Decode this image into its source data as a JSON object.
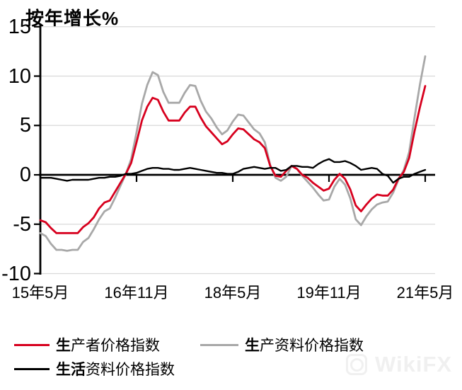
{
  "title": "按年增长%",
  "colors": {
    "ppi_red": "#d7001e",
    "producer_goods_gray": "#a8a8a8",
    "consumer_goods_black": "#000000",
    "grid": "#d9d9d9",
    "axis": "#000000",
    "watermark": "#f0f0f0"
  },
  "legend": [
    {
      "bold": "生",
      "rest": "产者价格指数",
      "color": "#d7001e"
    },
    {
      "bold": "生",
      "rest": "产资料价格指数",
      "color": "#a8a8a8"
    },
    {
      "bold": "生活",
      "rest": "资料价格指数",
      "color": "#000000"
    }
  ],
  "watermark": {
    "text": "WikiFX"
  },
  "chart_data": {
    "type": "line",
    "title": "按年增长%",
    "ylabel": "按年增长%",
    "xlabel": "",
    "ylim": [
      -10,
      15
    ],
    "grid": "horizontal-light",
    "legend_position": "bottom",
    "x_unit": "month",
    "x_start": "2015-05",
    "x_end": "2021-05",
    "yticks": [
      15,
      10,
      5,
      0,
      -5,
      -10
    ],
    "ytick_labels": [
      "15",
      "10",
      "5",
      "0",
      "-5",
      "-10"
    ],
    "xtick_positions": [
      0,
      18,
      36,
      54,
      72
    ],
    "xtick_labels": [
      "15年5月",
      "16年11月",
      "18年5月",
      "19年11月",
      "21年5月"
    ],
    "series": [
      {
        "id": "producer-price-index",
        "name": "生产者价格指数",
        "color": "#d7001e",
        "values": [
          -4.6,
          -4.8,
          -5.4,
          -5.9,
          -5.9,
          -5.9,
          -5.9,
          -5.9,
          -5.3,
          -4.9,
          -4.3,
          -3.4,
          -2.8,
          -2.6,
          -1.7,
          -0.8,
          0.1,
          1.2,
          3.3,
          5.5,
          6.9,
          7.8,
          7.6,
          6.4,
          5.5,
          5.5,
          5.5,
          6.3,
          6.9,
          6.9,
          5.8,
          4.9,
          4.3,
          3.7,
          3.1,
          3.4,
          4.1,
          4.7,
          4.6,
          4.1,
          3.6,
          3.3,
          2.7,
          0.9,
          -0.1,
          -0.2,
          0.4,
          0.9,
          0.6,
          0.0,
          -0.3,
          -0.8,
          -1.2,
          -1.6,
          -1.4,
          -0.5,
          0.1,
          -0.4,
          -1.5,
          -3.1,
          -3.7,
          -3.0,
          -2.4,
          -2.0,
          -2.1,
          -2.1,
          -1.5,
          -0.4,
          0.3,
          1.7,
          4.4,
          6.8,
          9.0
        ]
      },
      {
        "id": "producer-goods-price-index",
        "name": "生产资料价格指数",
        "color": "#a8a8a8",
        "values": [
          -5.9,
          -6.2,
          -7.0,
          -7.6,
          -7.6,
          -7.7,
          -7.6,
          -7.6,
          -6.8,
          -6.4,
          -5.5,
          -4.5,
          -3.7,
          -3.4,
          -2.3,
          -1.1,
          0.1,
          1.6,
          4.3,
          7.2,
          9.1,
          10.4,
          10.1,
          8.4,
          7.3,
          7.3,
          7.3,
          8.3,
          9.1,
          9.0,
          7.5,
          6.4,
          5.7,
          4.8,
          4.1,
          4.5,
          5.4,
          6.1,
          6.0,
          5.3,
          4.6,
          4.2,
          3.3,
          1.0,
          -0.3,
          -0.6,
          -0.2,
          0.9,
          0.6,
          -0.1,
          -0.7,
          -1.3,
          -2.0,
          -2.6,
          -2.5,
          -1.2,
          -0.4,
          -1.0,
          -2.4,
          -4.5,
          -5.1,
          -4.2,
          -3.5,
          -3.0,
          -2.8,
          -2.7,
          -1.8,
          -0.5,
          0.5,
          2.3,
          5.8,
          9.1,
          12.0
        ]
      },
      {
        "id": "consumer-goods-price-index",
        "name": "生活资料价格指数",
        "color": "#000000",
        "values": [
          -0.3,
          -0.3,
          -0.3,
          -0.4,
          -0.5,
          -0.6,
          -0.5,
          -0.5,
          -0.5,
          -0.5,
          -0.4,
          -0.3,
          -0.3,
          -0.2,
          -0.2,
          -0.1,
          0.1,
          0.1,
          0.2,
          0.4,
          0.6,
          0.7,
          0.7,
          0.6,
          0.6,
          0.5,
          0.5,
          0.6,
          0.7,
          0.6,
          0.5,
          0.4,
          0.3,
          0.2,
          0.2,
          0.1,
          0.1,
          0.3,
          0.6,
          0.7,
          0.8,
          0.7,
          0.6,
          0.7,
          0.7,
          0.4,
          0.5,
          0.9,
          0.9,
          0.8,
          0.8,
          0.7,
          1.1,
          1.4,
          1.6,
          1.3,
          1.3,
          1.4,
          1.2,
          0.9,
          0.5,
          0.6,
          0.7,
          0.6,
          0.1,
          -0.1,
          -0.8,
          -0.4,
          -0.2,
          -0.2,
          0.1,
          0.3,
          0.5
        ]
      }
    ]
  }
}
